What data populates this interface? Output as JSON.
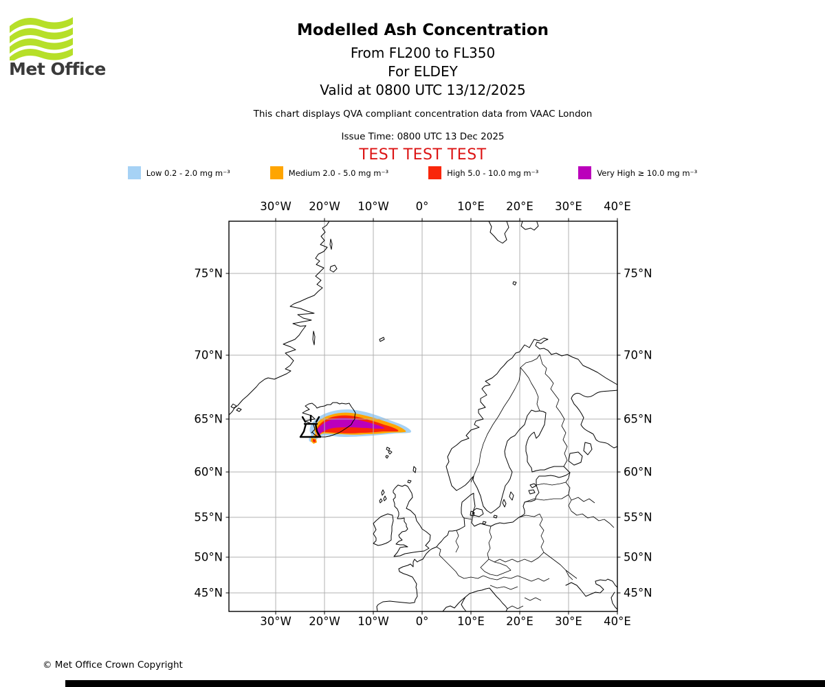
{
  "branding": {
    "logo_text": "Met Office",
    "logo_color": "#b6df29"
  },
  "header": {
    "title": "Modelled Ash Concentration",
    "subtitle1": "From FL200 to FL350",
    "subtitle2": "For ELDEY",
    "subtitle3": "Valid at 0800 UTC 13/12/2025",
    "description": "This chart displays QVA compliant concentration data from VAAC London",
    "issue_time": "Issue Time: 0800 UTC 13 Dec 2025",
    "test_banner": "TEST TEST TEST",
    "test_banner_color": "#dc1414"
  },
  "legend": {
    "items": [
      {
        "label": "Low 0.2 - 2.0 mg m⁻³",
        "color": "#a6d2f5"
      },
      {
        "label": "Medium 2.0 - 5.0 mg m⁻³",
        "color": "#ffa500"
      },
      {
        "label": "High 5.0 - 10.0 mg m⁻³",
        "color": "#f9260a"
      },
      {
        "label": "Very High ≥ 10.0 mg m⁻³",
        "color": "#bb00bb"
      }
    ]
  },
  "map": {
    "lon_labels": [
      "30°W",
      "20°W",
      "10°W",
      "0°",
      "10°E",
      "20°E",
      "30°E",
      "40°E"
    ],
    "lat_labels": [
      "75°N",
      "70°N",
      "65°N",
      "60°N",
      "55°N",
      "50°N",
      "45°N"
    ],
    "grid_color": "#b0b0b0"
  },
  "footer": {
    "copyright": "© Met Office Crown Copyright"
  },
  "chart_data": {
    "type": "heatmap",
    "subtype": "geographic ash-concentration contour map",
    "title": "Modelled Ash Concentration",
    "layer": "FL200 to FL350",
    "volcano": "ELDEY",
    "valid_time": "0800 UTC 13/12/2025",
    "issue_time": "0800 UTC 13 Dec 2025",
    "source": "VAAC London (QVA compliant)",
    "projection": "Mercator",
    "lon_axis": {
      "ticks": [
        "30°W",
        "20°W",
        "10°W",
        "0°",
        "10°E",
        "20°E",
        "30°E",
        "40°E"
      ],
      "range_deg": [
        -39.6,
        40
      ]
    },
    "lat_axis": {
      "ticks": [
        "75°N",
        "70°N",
        "65°N",
        "60°N",
        "55°N",
        "50°N",
        "45°N"
      ],
      "range_deg": [
        43.4,
        77.6
      ]
    },
    "grid": true,
    "bins": [
      {
        "name": "Low",
        "range_mg_m3": [
          0.2,
          2.0
        ],
        "color": "#a6d2f5"
      },
      {
        "name": "Medium",
        "range_mg_m3": [
          2.0,
          5.0
        ],
        "color": "#ffa500"
      },
      {
        "name": "High",
        "range_mg_m3": [
          5.0,
          10.0
        ],
        "color": "#f9260a"
      },
      {
        "name": "Very High",
        "range_mg_m3": [
          10.0,
          null
        ],
        "color": "#bb00bb"
      }
    ],
    "plume": {
      "origin": "Eldey volcano, approx 63.7°N 22.5°W (off SW Iceland), marked with black volcano symbol",
      "extent_lon_deg": [
        -24.5,
        -2.5
      ],
      "extent_lat_deg": [
        63.0,
        65.8
      ],
      "shape": "Narrow elongated plume extending east from Eldey across/just south of Iceland, tapering eastward; concentric bands: Very High (purple) core near source, then High (red), Medium (orange), Low (light blue) outer fringe"
    }
  }
}
